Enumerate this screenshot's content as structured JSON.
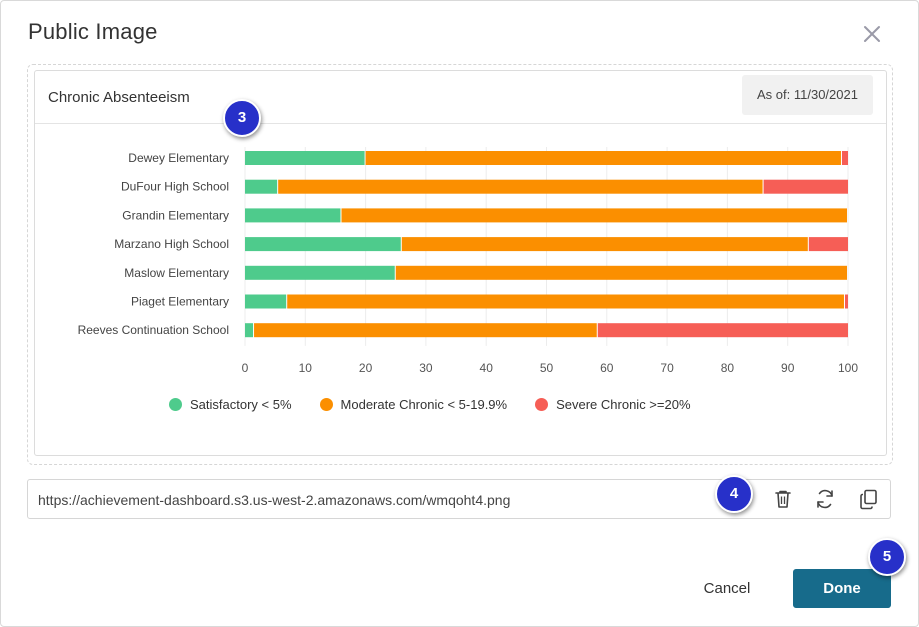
{
  "modal": {
    "title": "Public Image",
    "close_icon": "close-icon"
  },
  "card": {
    "title": "Chronic Absenteeism",
    "as_of": "As of: 11/30/2021"
  },
  "badges": {
    "b3": "3",
    "b4": "4",
    "b5": "5"
  },
  "colors": {
    "satisfactory": "#4ecb8c",
    "moderate": "#fb8f00",
    "severe": "#f65e56",
    "done_button": "#176b8b",
    "badge": "#2730c9"
  },
  "chart_data": {
    "type": "bar",
    "orientation": "horizontal",
    "stacked": true,
    "categories": [
      "Dewey Elementary",
      "DuFour High School",
      "Grandin Elementary",
      "Marzano High School",
      "Maslow Elementary",
      "Piaget Elementary",
      "Reeves Continuation School"
    ],
    "series": [
      {
        "name": "Satisfactory < 5%",
        "color": "#4ecb8c",
        "values": [
          20,
          5.5,
          16,
          26,
          25,
          7,
          1.5
        ]
      },
      {
        "name": "Moderate Chronic < 5-19.9%",
        "color": "#fb8f00",
        "values": [
          79,
          80.5,
          84,
          67.5,
          75,
          92.5,
          57
        ]
      },
      {
        "name": "Severe Chronic >=20%",
        "color": "#f65e56",
        "values": [
          1,
          14,
          0,
          6.5,
          0,
          0.5,
          41.5
        ]
      }
    ],
    "xlim": [
      0,
      100
    ],
    "xticks": [
      "0",
      "10",
      "20",
      "30",
      "40",
      "50",
      "60",
      "70",
      "80",
      "90",
      "100"
    ],
    "grid": true,
    "legend_position": "bottom"
  },
  "url_bar": {
    "url": "https://achievement-dashboard.s3.us-west-2.amazonaws.com/wmqoht4.png",
    "delete_icon": "trash-icon",
    "refresh_icon": "refresh-icon",
    "copy_icon": "copy-icon"
  },
  "footer": {
    "cancel_label": "Cancel",
    "done_label": "Done"
  }
}
